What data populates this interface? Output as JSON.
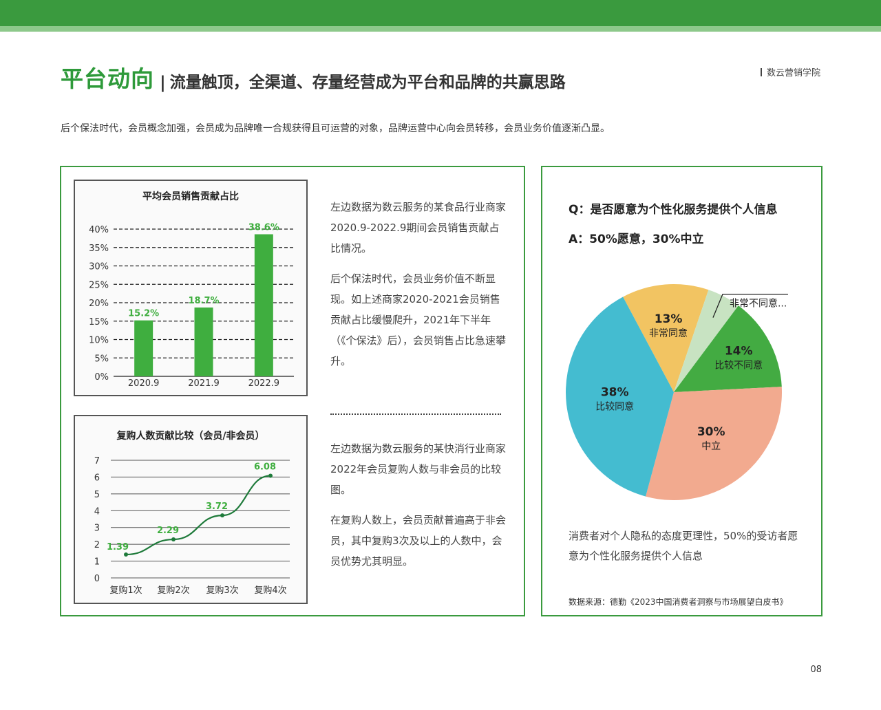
{
  "header": {
    "title_main": "平台动向",
    "title_sep": "|",
    "title_sub": "流量触顶，全渠道、存量经营成为平台和品牌的共赢思路",
    "brand": "数云营销学院"
  },
  "intro": "后个保法时代，会员概念加强，会员成为品牌唯一合规获得且可运营的对象，品牌运营中心向会员转移，会员业务价值逐渐凸显。",
  "left_panel": {
    "text1_p1": "左边数据为数云服务的某食品行业商家2020.9-2022.9期间会员销售贡献占比情况。",
    "text1_p2": "后个保法时代，会员业务价值不断显现。如上述商家2020-2021会员销售贡献占比缓慢爬升，2021年下半年（《个保法》后），会员销售占比急速攀升。",
    "text2_p1": "左边数据为数云服务的某快消行业商家2022年会员复购人数与非会员的比较图。",
    "text2_p2": "在复购人数上，会员贡献普遍高于非会员，其中复购3次及以上的人数中，会员优势尤其明显。"
  },
  "chart_data": [
    {
      "type": "bar",
      "title": "平均会员销售贡献占比",
      "categories": [
        "2020.9",
        "2021.9",
        "2022.9"
      ],
      "values": [
        15.2,
        18.7,
        38.6
      ],
      "value_labels": [
        "15.2%",
        "18.7%",
        "38.6%"
      ],
      "ylim": [
        0,
        40
      ],
      "yticks": [
        0,
        5,
        10,
        15,
        20,
        25,
        30,
        35,
        40
      ],
      "ytick_labels": [
        "0%",
        "5%",
        "10%",
        "15%",
        "20%",
        "25%",
        "30%",
        "35%",
        "40%"
      ],
      "grid": true,
      "color": "#3fae3f",
      "label_color": "#3fae3f"
    },
    {
      "type": "line",
      "title": "复购人数贡献比较（会员/非会员）",
      "categories": [
        "复购1次",
        "复购2次",
        "复购3次",
        "复购4次"
      ],
      "x": [
        1,
        1.5,
        2,
        2.5,
        3,
        3.5,
        4
      ],
      "values": [
        1.39,
        2.29,
        3.72,
        6.08
      ],
      "label_x": [
        1,
        2,
        3,
        4
      ],
      "ylim": [
        0,
        7
      ],
      "yticks": [
        0,
        1,
        2,
        3,
        4,
        5,
        6,
        7
      ],
      "ytick_labels": [
        "0",
        "1",
        "2",
        "3",
        "4",
        "5",
        "6",
        "7"
      ],
      "value_labels": [
        "1.39",
        "2.29",
        "3.72",
        "6.08"
      ],
      "grid": true,
      "color": "#1e7a3a",
      "label_color": "#3fae3f"
    },
    {
      "type": "pie",
      "slices": [
        {
          "label": "非常同意",
          "pct_label": "13%",
          "value": 13,
          "color": "#f2c462"
        },
        {
          "label": "非常不同意...",
          "pct_label": "",
          "value": 5,
          "color": "#c8e3c2"
        },
        {
          "label": "比较不同意",
          "pct_label": "14%",
          "value": 14,
          "color": "#43ab42"
        },
        {
          "label": "中立",
          "pct_label": "30%",
          "value": 30,
          "color": "#f2aa8f"
        },
        {
          "label": "比较同意",
          "pct_label": "38%",
          "value": 38,
          "color": "#44bcd0"
        }
      ]
    }
  ],
  "right_panel": {
    "question": "Q：是否愿意为个性化服务提供个人信息",
    "answer": "A：50%愿意，30%中立",
    "note": "消费者对个人隐私的态度更理性，50%的受访者愿意为个性化服务提供个人信息",
    "source": "数据来源：德勤《2023中国消费者洞察与市场展望白皮书》"
  },
  "page_number": "08"
}
